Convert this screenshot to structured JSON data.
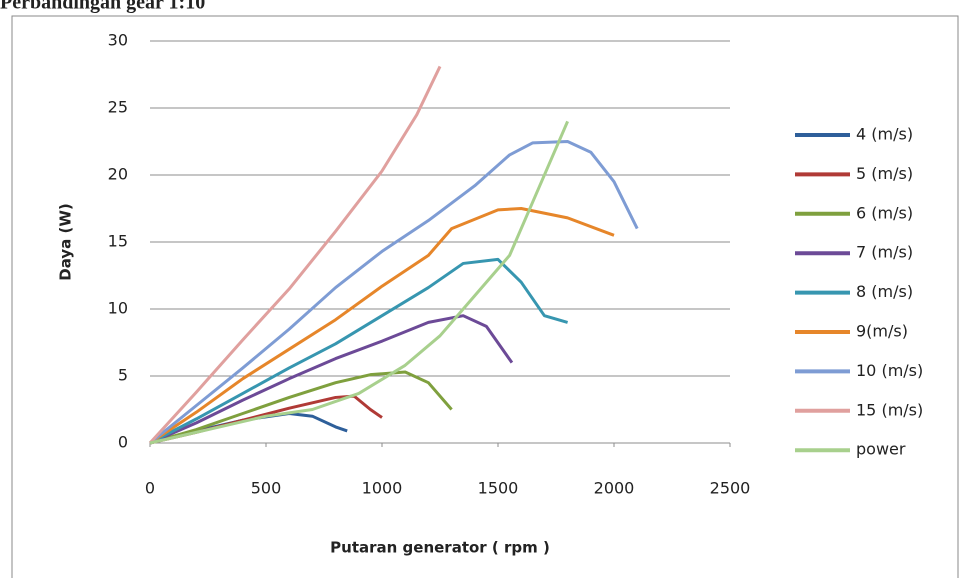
{
  "chart_data": {
    "type": "line",
    "title": "Perbandingan gear 1:10",
    "xlabel": "Putaran generator ( rpm )",
    "ylabel": "Daya (W)",
    "xlim": [
      0,
      2500
    ],
    "xticks": [
      0,
      500,
      1000,
      1500,
      2000,
      2500
    ],
    "ylim": [
      0,
      30
    ],
    "yticks": [
      0,
      5,
      10,
      15,
      20,
      25,
      30
    ],
    "grid": true,
    "legend": "right",
    "series": [
      {
        "name": "4 (m/s)",
        "color": "#2e5f9a",
        "x": [
          0,
          200,
          400,
          600,
          700,
          800,
          850
        ],
        "values": [
          0,
          0.9,
          1.7,
          2.2,
          2,
          1.2,
          0.9
        ]
      },
      {
        "name": "5 (m/s)",
        "color": "#b03a36",
        "x": [
          0,
          200,
          400,
          600,
          800,
          880,
          950,
          1000
        ],
        "values": [
          0,
          0.8,
          1.7,
          2.6,
          3.4,
          3.5,
          2.5,
          1.9
        ]
      },
      {
        "name": "6 (m/s)",
        "color": "#7fa03e",
        "x": [
          0,
          200,
          400,
          600,
          800,
          950,
          1100,
          1200,
          1300
        ],
        "values": [
          0,
          1,
          2.2,
          3.4,
          4.5,
          5.1,
          5.3,
          4.5,
          2.5
        ]
      },
      {
        "name": "7 (m/s)",
        "color": "#6c4a97",
        "x": [
          0,
          200,
          400,
          600,
          800,
          1000,
          1200,
          1350,
          1450,
          1560
        ],
        "values": [
          0,
          1.5,
          3.2,
          4.8,
          6.3,
          7.6,
          9,
          9.5,
          8.7,
          6
        ]
      },
      {
        "name": "8 (m/s)",
        "color": "#3796b0",
        "x": [
          0,
          200,
          400,
          600,
          800,
          1000,
          1200,
          1350,
          1500,
          1600,
          1700,
          1800
        ],
        "values": [
          0,
          1.8,
          3.7,
          5.6,
          7.4,
          9.5,
          11.6,
          13.4,
          13.7,
          12,
          9.5,
          9
        ]
      },
      {
        "name": "9(m/s)",
        "color": "#e6862a",
        "x": [
          0,
          200,
          400,
          600,
          800,
          1000,
          1200,
          1300,
          1500,
          1600,
          1800,
          2000
        ],
        "values": [
          0,
          2.3,
          4.8,
          7,
          9.2,
          11.7,
          14,
          16,
          17.4,
          17.5,
          16.8,
          15.5
        ]
      },
      {
        "name": "10 (m/s)",
        "color": "#7e9cd4",
        "x": [
          0,
          200,
          400,
          600,
          800,
          1000,
          1200,
          1400,
          1550,
          1650,
          1800,
          1900,
          2000,
          2100
        ],
        "values": [
          0,
          2.8,
          5.6,
          8.5,
          11.6,
          14.3,
          16.6,
          19.2,
          21.5,
          22.4,
          22.5,
          21.7,
          19.5,
          16
        ]
      },
      {
        "name": "15 (m/s)",
        "color": "#e0a09e",
        "x": [
          0,
          200,
          400,
          600,
          800,
          1000,
          1150,
          1250
        ],
        "values": [
          0,
          3.8,
          7.7,
          11.5,
          15.8,
          20.3,
          24.5,
          28.1
        ]
      },
      {
        "name": "power",
        "color": "#a8d08d",
        "x": [
          0,
          500,
          700,
          900,
          1100,
          1250,
          1400,
          1550,
          1650,
          1800
        ],
        "values": [
          0,
          2,
          2.5,
          3.7,
          5.8,
          8,
          11,
          14,
          18,
          24
        ]
      }
    ]
  }
}
